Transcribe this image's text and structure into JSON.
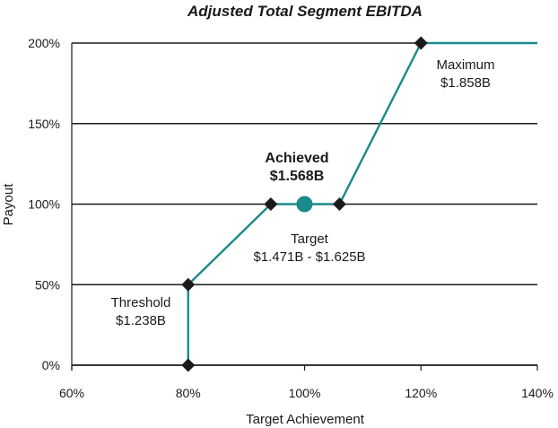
{
  "chart_data": {
    "type": "line",
    "title": "Adjusted Total Segment EBITDA",
    "xlabel": "Target Achievement",
    "ylabel": "Payout",
    "xlim": [
      60,
      140
    ],
    "ylim": [
      0,
      200
    ],
    "x_ticks": [
      "60%",
      "80%",
      "100%",
      "120%",
      "140%"
    ],
    "y_ticks": [
      "0%",
      "50%",
      "100%",
      "150%",
      "200%"
    ],
    "grid": "horizontal",
    "series": [
      {
        "color": "#1a8a8a",
        "x": [
          80,
          80,
          94.2,
          106,
          120,
          140
        ],
        "y": [
          0,
          50,
          100,
          100,
          200,
          200
        ]
      }
    ],
    "markers": [
      {
        "shape": "diamond",
        "x": 80,
        "y": 0
      },
      {
        "shape": "diamond",
        "x": 80,
        "y": 50
      },
      {
        "shape": "diamond",
        "x": 94.2,
        "y": 100
      },
      {
        "shape": "diamond",
        "x": 106,
        "y": 100
      },
      {
        "shape": "diamond",
        "x": 120,
        "y": 200
      },
      {
        "shape": "circle",
        "x": 100,
        "y": 100,
        "color": "#1a8a8a"
      }
    ],
    "annotations": {
      "achieved": [
        "Achieved",
        "$1.568B"
      ],
      "target": [
        "Target",
        "$1.471B - $1.625B"
      ],
      "threshold": [
        "Threshold",
        "$1.238B"
      ],
      "maximum": [
        "Maximum",
        "$1.858B"
      ]
    }
  }
}
